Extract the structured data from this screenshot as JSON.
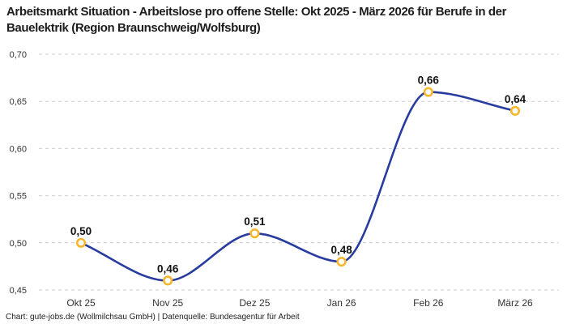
{
  "header": {
    "title": "Arbeitsmarkt Situation - Arbeitslose pro offene Stelle: Okt 2025 - März 2026 für Berufe in der Bauelektrik (Region Braunschweig/Wolfsburg)"
  },
  "chart_data": {
    "type": "line",
    "title": "Arbeitsmarkt Situation - Arbeitslose pro offene Stelle: Okt 2025 - März 2026 für Berufe in der Bauelektrik (Region Braunschweig/Wolfsburg)",
    "categories": [
      "Okt 25",
      "Nov 25",
      "Dez 25",
      "Jan 26",
      "Feb 26",
      "März 26"
    ],
    "values": [
      0.5,
      0.46,
      0.51,
      0.48,
      0.66,
      0.64
    ],
    "point_labels": [
      "0,50",
      "0,46",
      "0,51",
      "0,48",
      "0,66",
      "0,64"
    ],
    "ylim": [
      0.45,
      0.7
    ],
    "ytick_step": 0.05,
    "ytick_labels": [
      "0,45",
      "0,50",
      "0,55",
      "0,60",
      "0,65",
      "0,70"
    ],
    "grid": "horizontal-dashed",
    "legend": "none",
    "xlabel": "",
    "ylabel": "",
    "line_color": "#283c9f",
    "marker_stroke_color": "#f8b62d",
    "marker_fill_color": "#ffffff",
    "gridline_color": "#cbcbcb"
  },
  "footer": {
    "credit": "Chart: gute-jobs.de (Wollmilchsau GmbH) | Datenquelle: Bundesagentur für Arbeit"
  }
}
